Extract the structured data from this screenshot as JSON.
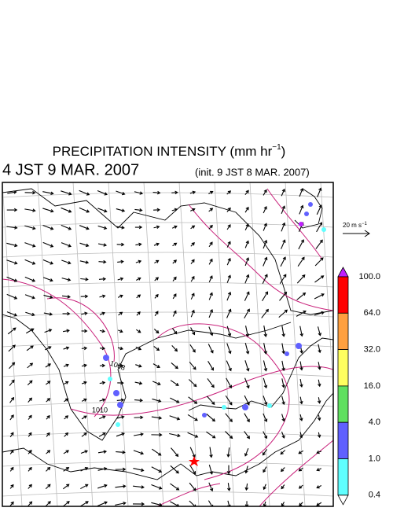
{
  "title": {
    "text": "PRECIPITATION INTENSITY (mm hr",
    "sup": "−1",
    "close": ")"
  },
  "valid_time": "4 JST 9 MAR. 2007",
  "init_time": "(init. 9 JST 8 MAR. 2007)",
  "wind_reference": {
    "text": "20 m s",
    "sup": "−1"
  },
  "isobar_labels": [
    "1008",
    "1010"
  ],
  "legend": {
    "bins": [
      {
        "label": "100.0",
        "color": "#ff0000"
      },
      {
        "label": "64.0",
        "color": "#ffa040"
      },
      {
        "label": "32.0",
        "color": "#ffff60"
      },
      {
        "label": "16.0",
        "color": "#60e060"
      },
      {
        "label": "4.0",
        "color": "#6060ff"
      },
      {
        "label": "1.0",
        "color": "#60ffff"
      },
      {
        "label": "0.4",
        "color": "#ffffff"
      }
    ],
    "top_color": "#c020ff"
  }
}
